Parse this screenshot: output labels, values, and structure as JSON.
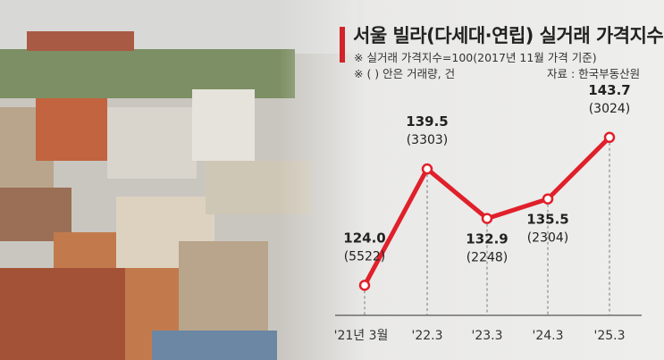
{
  "chart_data": {
    "type": "line",
    "title": "서울 빌라(다세대·연립) 실거래 가격지수",
    "notes": [
      "※ 실거래 가격지수=100(2017년 11월 가격 기준)",
      "※ ( ) 안은 거래량, 건"
    ],
    "source": "자료 : 한국부동산원",
    "categories": [
      "'21년 3월",
      "'22.3",
      "'23.3",
      "'24.3",
      "'25.3"
    ],
    "values": [
      124.0,
      139.5,
      132.9,
      135.5,
      143.7
    ],
    "volumes": [
      "(5522)",
      "(3303)",
      "(2248)",
      "(2304)",
      "(3024)"
    ],
    "value_labels": [
      "124.0",
      "139.5",
      "132.9",
      "135.5",
      "143.7"
    ],
    "ylim": [
      120,
      162
    ],
    "grid": false,
    "line_color": "#e0202a"
  }
}
